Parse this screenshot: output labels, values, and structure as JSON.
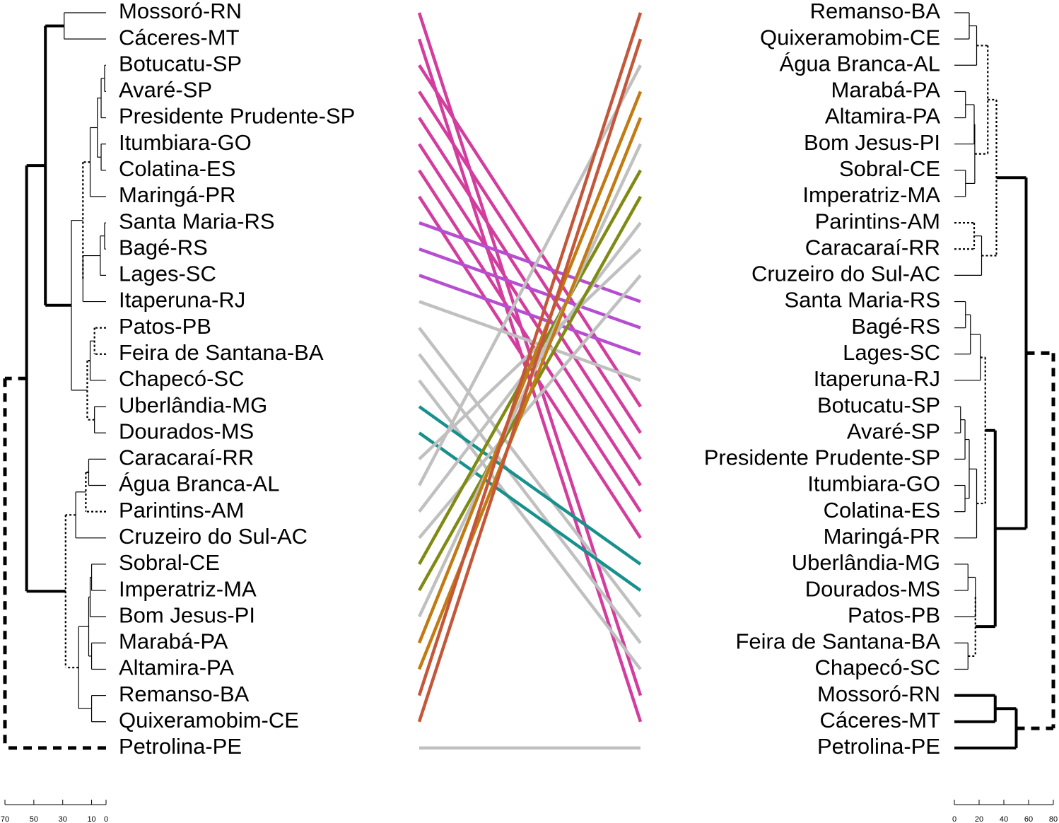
{
  "chart_data": {
    "type": "tanglegram",
    "left": {
      "labels": [
        "Mossoró-RN",
        "Cáceres-MT",
        "Botucatu-SP",
        "Avaré-SP",
        "Presidente Prudente-SP",
        "Itumbiara-GO",
        "Colatina-ES",
        "Maringá-PR",
        "Santa Maria-RS",
        "Bagé-RS",
        "Lages-SC",
        "Itaperuna-RJ",
        "Patos-PB",
        "Feira de Santana-BA",
        "Chapecó-SC",
        "Uberlândia-MG",
        "Dourados-MS",
        "Caracaraí-RR",
        "Água Branca-AL",
        "Parintins-AM",
        "Cruzeiro do Sul-AC",
        "Sobral-CE",
        "Imperatriz-MA",
        "Bom Jesus-PI",
        "Marabá-PA",
        "Altamira-PA",
        "Remanso-BA",
        "Quixeramobim-CE",
        "Petrolina-PE"
      ],
      "xlim": [
        70,
        0
      ],
      "xticks": [
        70,
        50,
        30,
        10,
        0
      ],
      "tree": {
        "height": 70,
        "style": "bold-dashed",
        "children": [
          {
            "height": 55,
            "style": "bold",
            "children": [
              {
                "height": 42,
                "style": "bold",
                "children": [
                  {
                    "height": 29,
                    "children": [
                      0,
                      1
                    ]
                  },
                  {
                    "height": 24,
                    "children": [
                      {
                        "height": 16,
                        "style": "dashed",
                        "children": [
                          {
                            "height": 11,
                            "children": [
                              {
                                "height": 6,
                                "children": [
                                  {
                                    "height": 3.4,
                                    "children": [
                                      {
                                        "height": 1,
                                        "children": [
                                          2,
                                          3
                                        ]
                                      },
                                      4
                                    ]
                                  },
                                  {
                                    "height": 3.4,
                                    "children": [
                                      5,
                                      6
                                    ]
                                  }
                                ]
                              },
                              7
                            ]
                          },
                          {
                            "height": 16,
                            "children": [
                              {
                                "height": 4,
                                "children": [
                                  {
                                    "height": 1,
                                    "children": [
                                      8,
                                      9
                                    ]
                                  },
                                  10
                                ]
                              },
                              11
                            ]
                          }
                        ]
                      },
                      {
                        "height": 13,
                        "style": "dashed",
                        "children": [
                          {
                            "height": 11,
                            "children": [
                              {
                                "height": 8,
                                "style": "dashed",
                                "children": [
                                  12,
                                  13
                                ]
                              },
                              14
                            ]
                          },
                          {
                            "height": 8,
                            "children": [
                              15,
                              16
                            ]
                          }
                        ]
                      }
                    ]
                  }
                ]
              },
              {
                "height": 28,
                "style": "dashed",
                "children": [
                  {
                    "height": 21,
                    "children": [
                      {
                        "height": 14,
                        "style": "dashed",
                        "children": [
                          {
                            "height": 12,
                            "children": [
                              17,
                              18
                            ]
                          },
                          19
                        ]
                      },
                      20
                    ]
                  },
                  {
                    "height": 19,
                    "children": [
                      {
                        "height": 12,
                        "children": [
                          {
                            "height": 11,
                            "children": [
                              {
                                "height": 10,
                                "children": [
                                  21,
                                  22
                                ]
                              },
                              23
                            ]
                          },
                          {
                            "height": 10,
                            "children": [
                              24,
                              25
                            ]
                          }
                        ]
                      },
                      {
                        "height": 10,
                        "children": [
                          26,
                          27
                        ]
                      }
                    ]
                  }
                ]
              }
            ]
          },
          28
        ]
      }
    },
    "right": {
      "labels": [
        "Remanso-BA",
        "Quixeramobim-CE",
        "Água Branca-AL",
        "Marabá-PA",
        "Altamira-PA",
        "Bom Jesus-PI",
        "Sobral-CE",
        "Imperatriz-MA",
        "Parintins-AM",
        "Caracaraí-RR",
        "Cruzeiro do Sul-AC",
        "Santa Maria-RS",
        "Bagé-RS",
        "Lages-SC",
        "Itaperuna-RJ",
        "Botucatu-SP",
        "Avaré-SP",
        "Presidente Prudente-SP",
        "Itumbiara-GO",
        "Colatina-ES",
        "Maringá-PR",
        "Uberlândia-MG",
        "Dourados-MS",
        "Patos-PB",
        "Feira de Santana-BA",
        "Chapecó-SC",
        "Mossoró-RN",
        "Cáceres-MT",
        "Petrolina-PE"
      ],
      "xlim": [
        0,
        80
      ],
      "xticks": [
        0,
        20,
        40,
        60,
        80
      ],
      "tree": {
        "height": 80,
        "style": "bold-dashed",
        "children": [
          {
            "height": 58,
            "style": "bold",
            "children": [
              {
                "height": 34,
                "style": "dashed",
                "children": [
                  {
                    "height": 27,
                    "style": "dashed",
                    "children": [
                      {
                        "height": 18,
                        "children": [
                          {
                            "height": 12,
                            "children": [
                              0,
                              1
                            ]
                          },
                          2
                        ]
                      },
                      {
                        "height": 16.5,
                        "children": [
                          {
                            "height": 16,
                            "children": [
                              {
                                "height": 9,
                                "children": [
                                  3,
                                  4
                                ]
                              },
                              5
                            ]
                          },
                          {
                            "height": 9,
                            "children": [
                              6,
                              7
                            ]
                          }
                        ]
                      }
                    ]
                  },
                  {
                    "height": 22,
                    "children": [
                      {
                        "height": 16,
                        "style": "dashed",
                        "children": [
                          8,
                          9
                        ]
                      },
                      10
                    ]
                  }
                ]
              },
              {
                "height": 33,
                "style": "bold",
                "children": [
                  {
                    "height": 25,
                    "style": "dashed",
                    "children": [
                      {
                        "height": 21,
                        "children": [
                          {
                            "height": 13,
                            "children": [
                              {
                                "height": 9,
                                "children": [
                                  11,
                                  12
                                ]
                              },
                              13
                            ]
                          },
                          14
                        ]
                      },
                      {
                        "height": 18,
                        "children": [
                          {
                            "height": 12,
                            "children": [
                              {
                                "height": 8.6,
                                "children": [
                                  {
                                    "height": 5,
                                    "children": [
                                      15,
                                      16
                                    ]
                                  },
                                  17
                                ]
                              },
                              {
                                "height": 8.6,
                                "children": [
                                  18,
                                  19
                                ]
                              }
                            ]
                          },
                          20
                        ]
                      }
                    ]
                  },
                  {
                    "height": 17,
                    "style": "dashed",
                    "children": [
                      {
                        "height": 17,
                        "children": [
                          {
                            "height": 11,
                            "children": [
                              21,
                              22
                            ]
                          },
                          23
                        ]
                      },
                      {
                        "height": 11,
                        "children": [
                          24,
                          25
                        ]
                      }
                    ]
                  }
                ]
              }
            ]
          },
          {
            "height": 50,
            "style": "bold",
            "children": [
              {
                "height": 33,
                "style": "bold",
                "children": [
                  26,
                  27
                ]
              },
              28
            ]
          }
        ]
      }
    },
    "connections": [
      {
        "left": 0,
        "right": 26,
        "color": "#d23d9e"
      },
      {
        "left": 1,
        "right": 27,
        "color": "#d23d9e"
      },
      {
        "left": 2,
        "right": 15,
        "color": "#d23d9e"
      },
      {
        "left": 3,
        "right": 16,
        "color": "#d23d9e"
      },
      {
        "left": 4,
        "right": 17,
        "color": "#d23d9e"
      },
      {
        "left": 5,
        "right": 18,
        "color": "#d23d9e"
      },
      {
        "left": 6,
        "right": 19,
        "color": "#d23d9e"
      },
      {
        "left": 7,
        "right": 20,
        "color": "#d23d9e"
      },
      {
        "left": 8,
        "right": 11,
        "color": "#b54fd0"
      },
      {
        "left": 9,
        "right": 12,
        "color": "#b54fd0"
      },
      {
        "left": 10,
        "right": 13,
        "color": "#b54fd0"
      },
      {
        "left": 11,
        "right": 14,
        "color": "#c0c0c0"
      },
      {
        "left": 12,
        "right": 23,
        "color": "#c0c0c0"
      },
      {
        "left": 13,
        "right": 24,
        "color": "#c0c0c0"
      },
      {
        "left": 14,
        "right": 25,
        "color": "#c0c0c0"
      },
      {
        "left": 15,
        "right": 21,
        "color": "#17918d"
      },
      {
        "left": 16,
        "right": 22,
        "color": "#17918d"
      },
      {
        "left": 17,
        "right": 9,
        "color": "#c0c0c0"
      },
      {
        "left": 18,
        "right": 2,
        "color": "#c0c0c0"
      },
      {
        "left": 19,
        "right": 8,
        "color": "#c0c0c0"
      },
      {
        "left": 20,
        "right": 10,
        "color": "#c0c0c0"
      },
      {
        "left": 21,
        "right": 6,
        "color": "#7f8a12"
      },
      {
        "left": 22,
        "right": 7,
        "color": "#7f8a12"
      },
      {
        "left": 23,
        "right": 5,
        "color": "#c0c0c0"
      },
      {
        "left": 24,
        "right": 3,
        "color": "#c27a12"
      },
      {
        "left": 25,
        "right": 4,
        "color": "#c27a12"
      },
      {
        "left": 26,
        "right": 0,
        "color": "#c4573a"
      },
      {
        "left": 27,
        "right": 1,
        "color": "#c4573a"
      },
      {
        "left": 28,
        "right": 28,
        "color": "#c0c0c0"
      }
    ]
  }
}
